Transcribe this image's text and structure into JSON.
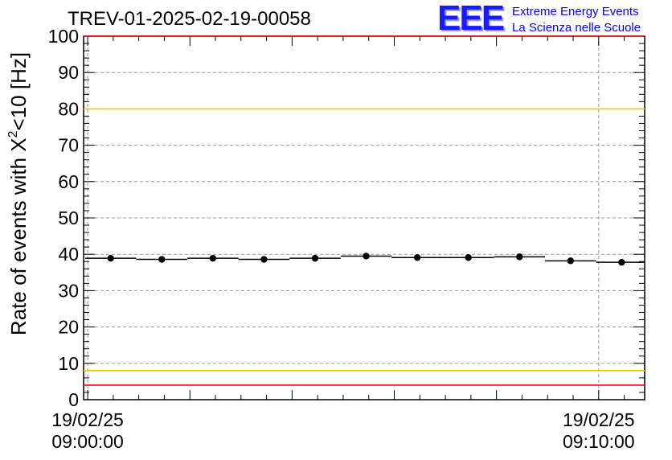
{
  "title": "TREV-01-2025-02-19-00058",
  "logo": {
    "mark": "EEE",
    "line1": "Extreme Energy Events",
    "line2": "La Scienza nelle Scuole"
  },
  "colors": {
    "threshold_red": "#ff0000",
    "threshold_yellow": "#f0c800",
    "data": "#000000",
    "grid": "#9a9a9a",
    "logo": "#0000ff"
  },
  "chart_data": {
    "type": "scatter",
    "title": "TREV-01-2025-02-19-00058",
    "xlabel": "",
    "ylabel_prefix": "Rate of events with X",
    "ylabel_sup": "2",
    "ylabel_suffix": "<10 [Hz]",
    "ylim": [
      0,
      100
    ],
    "yticks": [
      0,
      10,
      20,
      30,
      40,
      50,
      60,
      70,
      80,
      90,
      100
    ],
    "grid": true,
    "x_tick_labels": [
      {
        "x_min": 0,
        "line1": "19/02/25",
        "line2": "09:00:00"
      },
      {
        "x_min": 10,
        "line1": "19/02/25",
        "line2": "09:10:00"
      }
    ],
    "xlim": [
      -0.08,
      10.9
    ],
    "bin_width_min": 1.0,
    "x": [
      0.45,
      1.45,
      2.45,
      3.45,
      4.45,
      5.45,
      6.45,
      7.45,
      8.45,
      9.45,
      10.45
    ],
    "y": [
      38.9,
      38.6,
      38.9,
      38.6,
      38.9,
      39.5,
      39.1,
      39.1,
      39.3,
      38.2,
      37.8
    ],
    "reference_lines": [
      {
        "y": 100,
        "color": "red"
      },
      {
        "y": 80,
        "color": "yellow"
      },
      {
        "y": 8,
        "color": "yellow"
      },
      {
        "y": 4,
        "color": "red"
      }
    ]
  }
}
